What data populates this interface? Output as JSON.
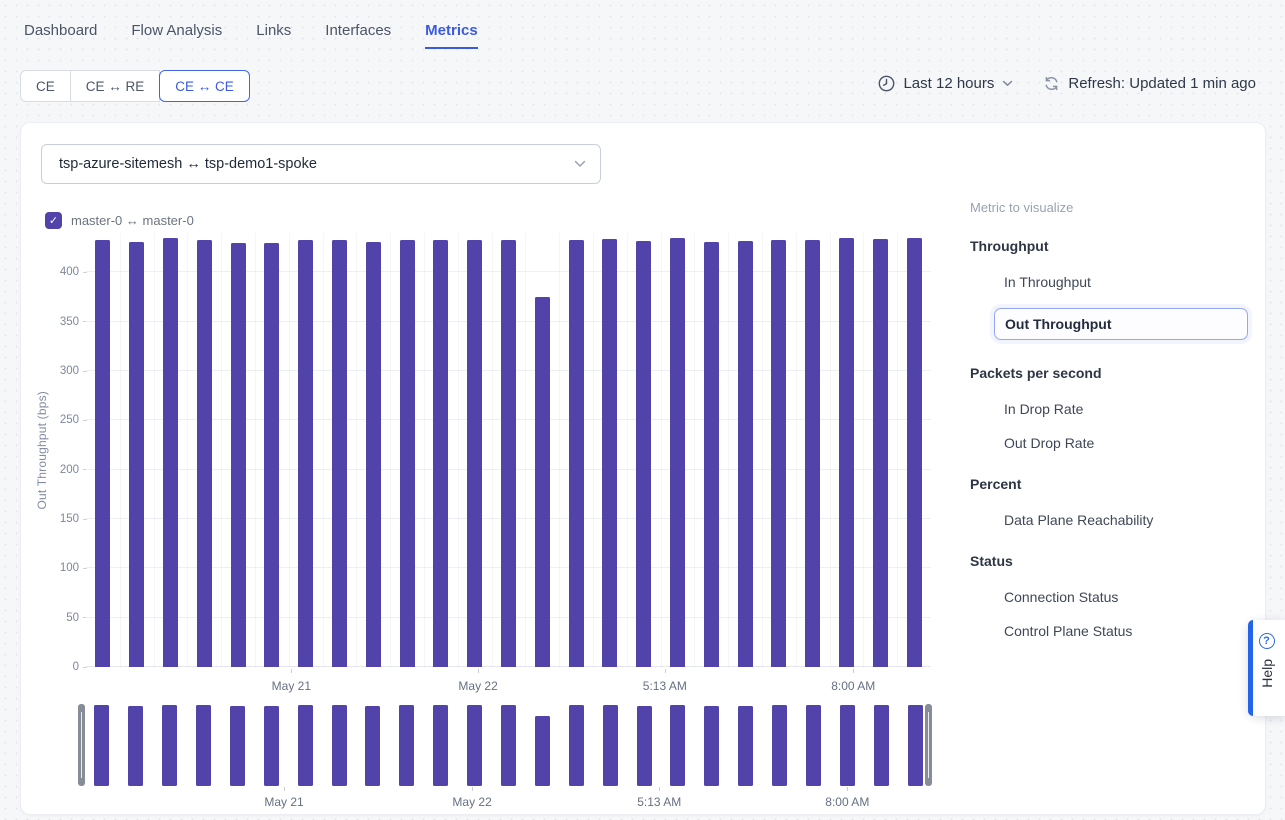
{
  "nav": {
    "items": [
      {
        "label": "Dashboard"
      },
      {
        "label": "Flow Analysis"
      },
      {
        "label": "Links"
      },
      {
        "label": "Interfaces"
      },
      {
        "label": "Metrics"
      }
    ],
    "active": "Metrics"
  },
  "tabs": {
    "items": [
      {
        "label": "CE"
      },
      {
        "label": "CE ↔ RE"
      },
      {
        "label": "CE ↔ CE"
      }
    ],
    "active": "CE ↔ CE"
  },
  "time_range": {
    "label": "Last 12 hours"
  },
  "refresh": {
    "label": "Refresh: Updated 1 min ago"
  },
  "selector": {
    "value": "tsp-azure-sitemesh ↔ tsp-demo1-spoke"
  },
  "legend": {
    "checkbox_label": "master-0 ↔ master-0",
    "checked": true
  },
  "sidebar": {
    "title": "Metric to visualize",
    "groups": [
      {
        "heading": "Throughput",
        "items": [
          {
            "label": "In Throughput",
            "selected": false
          },
          {
            "label": "Out Throughput",
            "selected": true
          }
        ]
      },
      {
        "heading": "Packets per second",
        "items": [
          {
            "label": "In Drop Rate",
            "selected": false
          },
          {
            "label": "Out Drop Rate",
            "selected": false
          }
        ]
      },
      {
        "heading": "Percent",
        "items": [
          {
            "label": "Data Plane Reachability",
            "selected": false
          }
        ]
      },
      {
        "heading": "Status",
        "items": [
          {
            "label": "Connection Status",
            "selected": false
          },
          {
            "label": "Control Plane Status",
            "selected": false
          }
        ]
      }
    ]
  },
  "help": {
    "label": "Help"
  },
  "icons": {
    "checkmark": "✓",
    "help_question": "?"
  },
  "chart_data": {
    "type": "bar",
    "title": "",
    "xlabel": "",
    "ylabel": "Out Throughput (bps)",
    "ylim": [
      0,
      440
    ],
    "yticks": [
      0,
      50,
      100,
      150,
      200,
      250,
      300,
      350,
      400
    ],
    "grid": true,
    "series": [
      {
        "name": "master-0 ↔ master-0",
        "values": [
          433,
          431,
          435,
          433,
          430,
          430,
          433,
          433,
          431,
          433,
          433,
          433,
          433,
          375,
          433,
          434,
          432,
          435,
          431,
          432,
          433,
          433,
          435,
          434,
          435
        ]
      }
    ],
    "x_tick_labels": [
      "May 21",
      "May 22",
      "5:13 AM",
      "8:00 AM"
    ],
    "x_tick_positions_pct": [
      24.3,
      46.4,
      68.5,
      90.8
    ],
    "overview_tick_positions_pct": [
      23.5,
      45.7,
      67.8,
      90.0
    ],
    "has_overview_brush": true,
    "bar_color": "#5143a9"
  },
  "colors": {
    "accent_blue": "#3c5ae0",
    "bar_purple": "#5143a9",
    "help_blue": "#2563eb",
    "selected_border": "#95a7f3"
  }
}
